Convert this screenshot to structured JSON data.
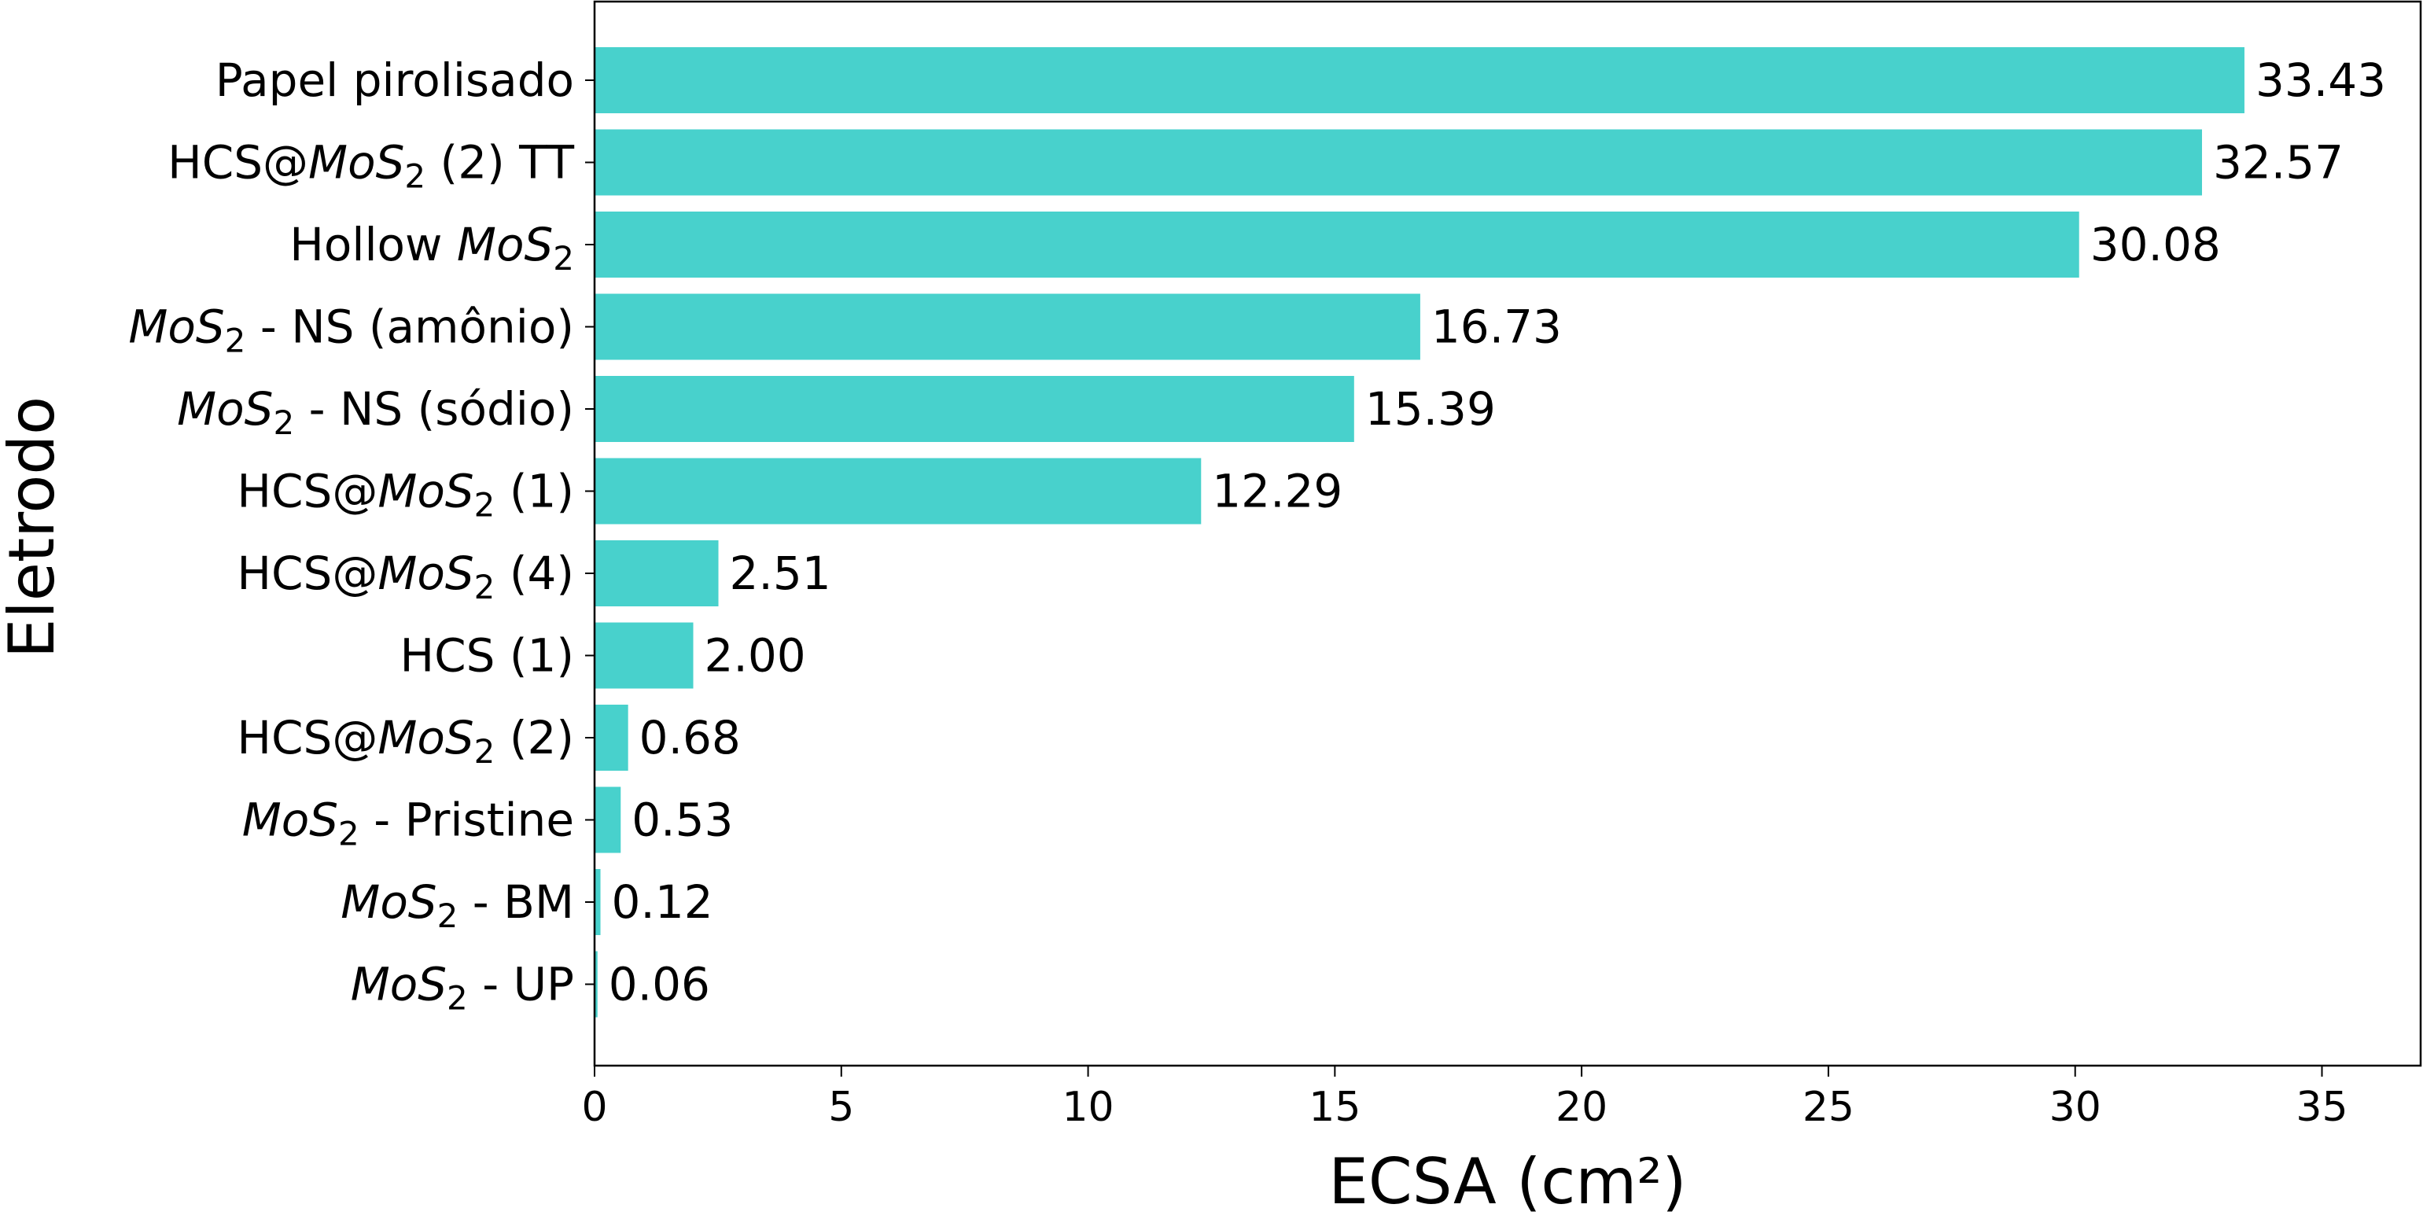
{
  "chart_data": {
    "type": "bar",
    "orientation": "horizontal",
    "bar_color": "#48D1CC",
    "xlabel": "ECSA (cm²)",
    "ylabel": "Eletrodo",
    "xlim": [
      0,
      37
    ],
    "xticks": [
      "0",
      "5",
      "10",
      "15",
      "20",
      "25",
      "30",
      "35"
    ],
    "grid": false,
    "categories": [
      {
        "prefix": "",
        "italic": "",
        "sub": "",
        "suffix": "Papel pirolisado"
      },
      {
        "prefix": "HCS@",
        "italic": "MoS",
        "sub": "2",
        "suffix": " (2) TT"
      },
      {
        "prefix": "Hollow ",
        "italic": "MoS",
        "sub": "2",
        "suffix": ""
      },
      {
        "prefix": "",
        "italic": "MoS",
        "sub": "2",
        "suffix": " - NS (amônio)"
      },
      {
        "prefix": "",
        "italic": "MoS",
        "sub": "2",
        "suffix": " - NS (sódio)"
      },
      {
        "prefix": "HCS@",
        "italic": "MoS",
        "sub": "2",
        "suffix": " (1)"
      },
      {
        "prefix": "HCS@",
        "italic": "MoS",
        "sub": "2",
        "suffix": " (4)"
      },
      {
        "prefix": "",
        "italic": "",
        "sub": "",
        "suffix": "HCS (1)"
      },
      {
        "prefix": "HCS@",
        "italic": "MoS",
        "sub": "2",
        "suffix": " (2)"
      },
      {
        "prefix": "",
        "italic": "MoS",
        "sub": "2",
        "suffix": " - Pristine"
      },
      {
        "prefix": "",
        "italic": "MoS",
        "sub": "2",
        "suffix": " - BM"
      },
      {
        "prefix": "",
        "italic": "MoS",
        "sub": "2",
        "suffix": " - UP"
      }
    ],
    "values": [
      33.43,
      32.57,
      30.08,
      16.73,
      15.39,
      12.29,
      2.51,
      2.0,
      0.68,
      0.53,
      0.12,
      0.06
    ],
    "value_labels": [
      "33.43",
      "32.57",
      "30.08",
      "16.73",
      "15.39",
      "12.29",
      "2.51",
      "2.00",
      "0.68",
      "0.53",
      "0.12",
      "0.06"
    ]
  }
}
